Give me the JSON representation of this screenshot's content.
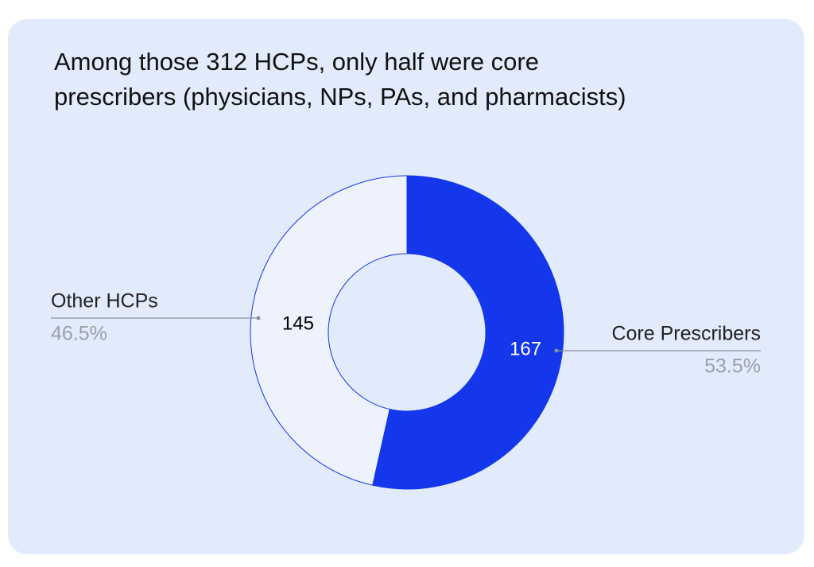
{
  "chart_data": {
    "type": "donut",
    "title_lines": [
      "Among those 312 HCPs, only half were core",
      "prescribers (physicians, NPs, PAs, and pharmacists)"
    ],
    "categories": [
      "Core Prescribers",
      "Other HCPs"
    ],
    "values": [
      167,
      145
    ],
    "percent_labels": [
      "53.5%",
      "46.5%"
    ],
    "colors": [
      "#1537ec",
      "#edf2fc"
    ],
    "label_colors": [
      "#ffffff",
      "#000000"
    ]
  }
}
